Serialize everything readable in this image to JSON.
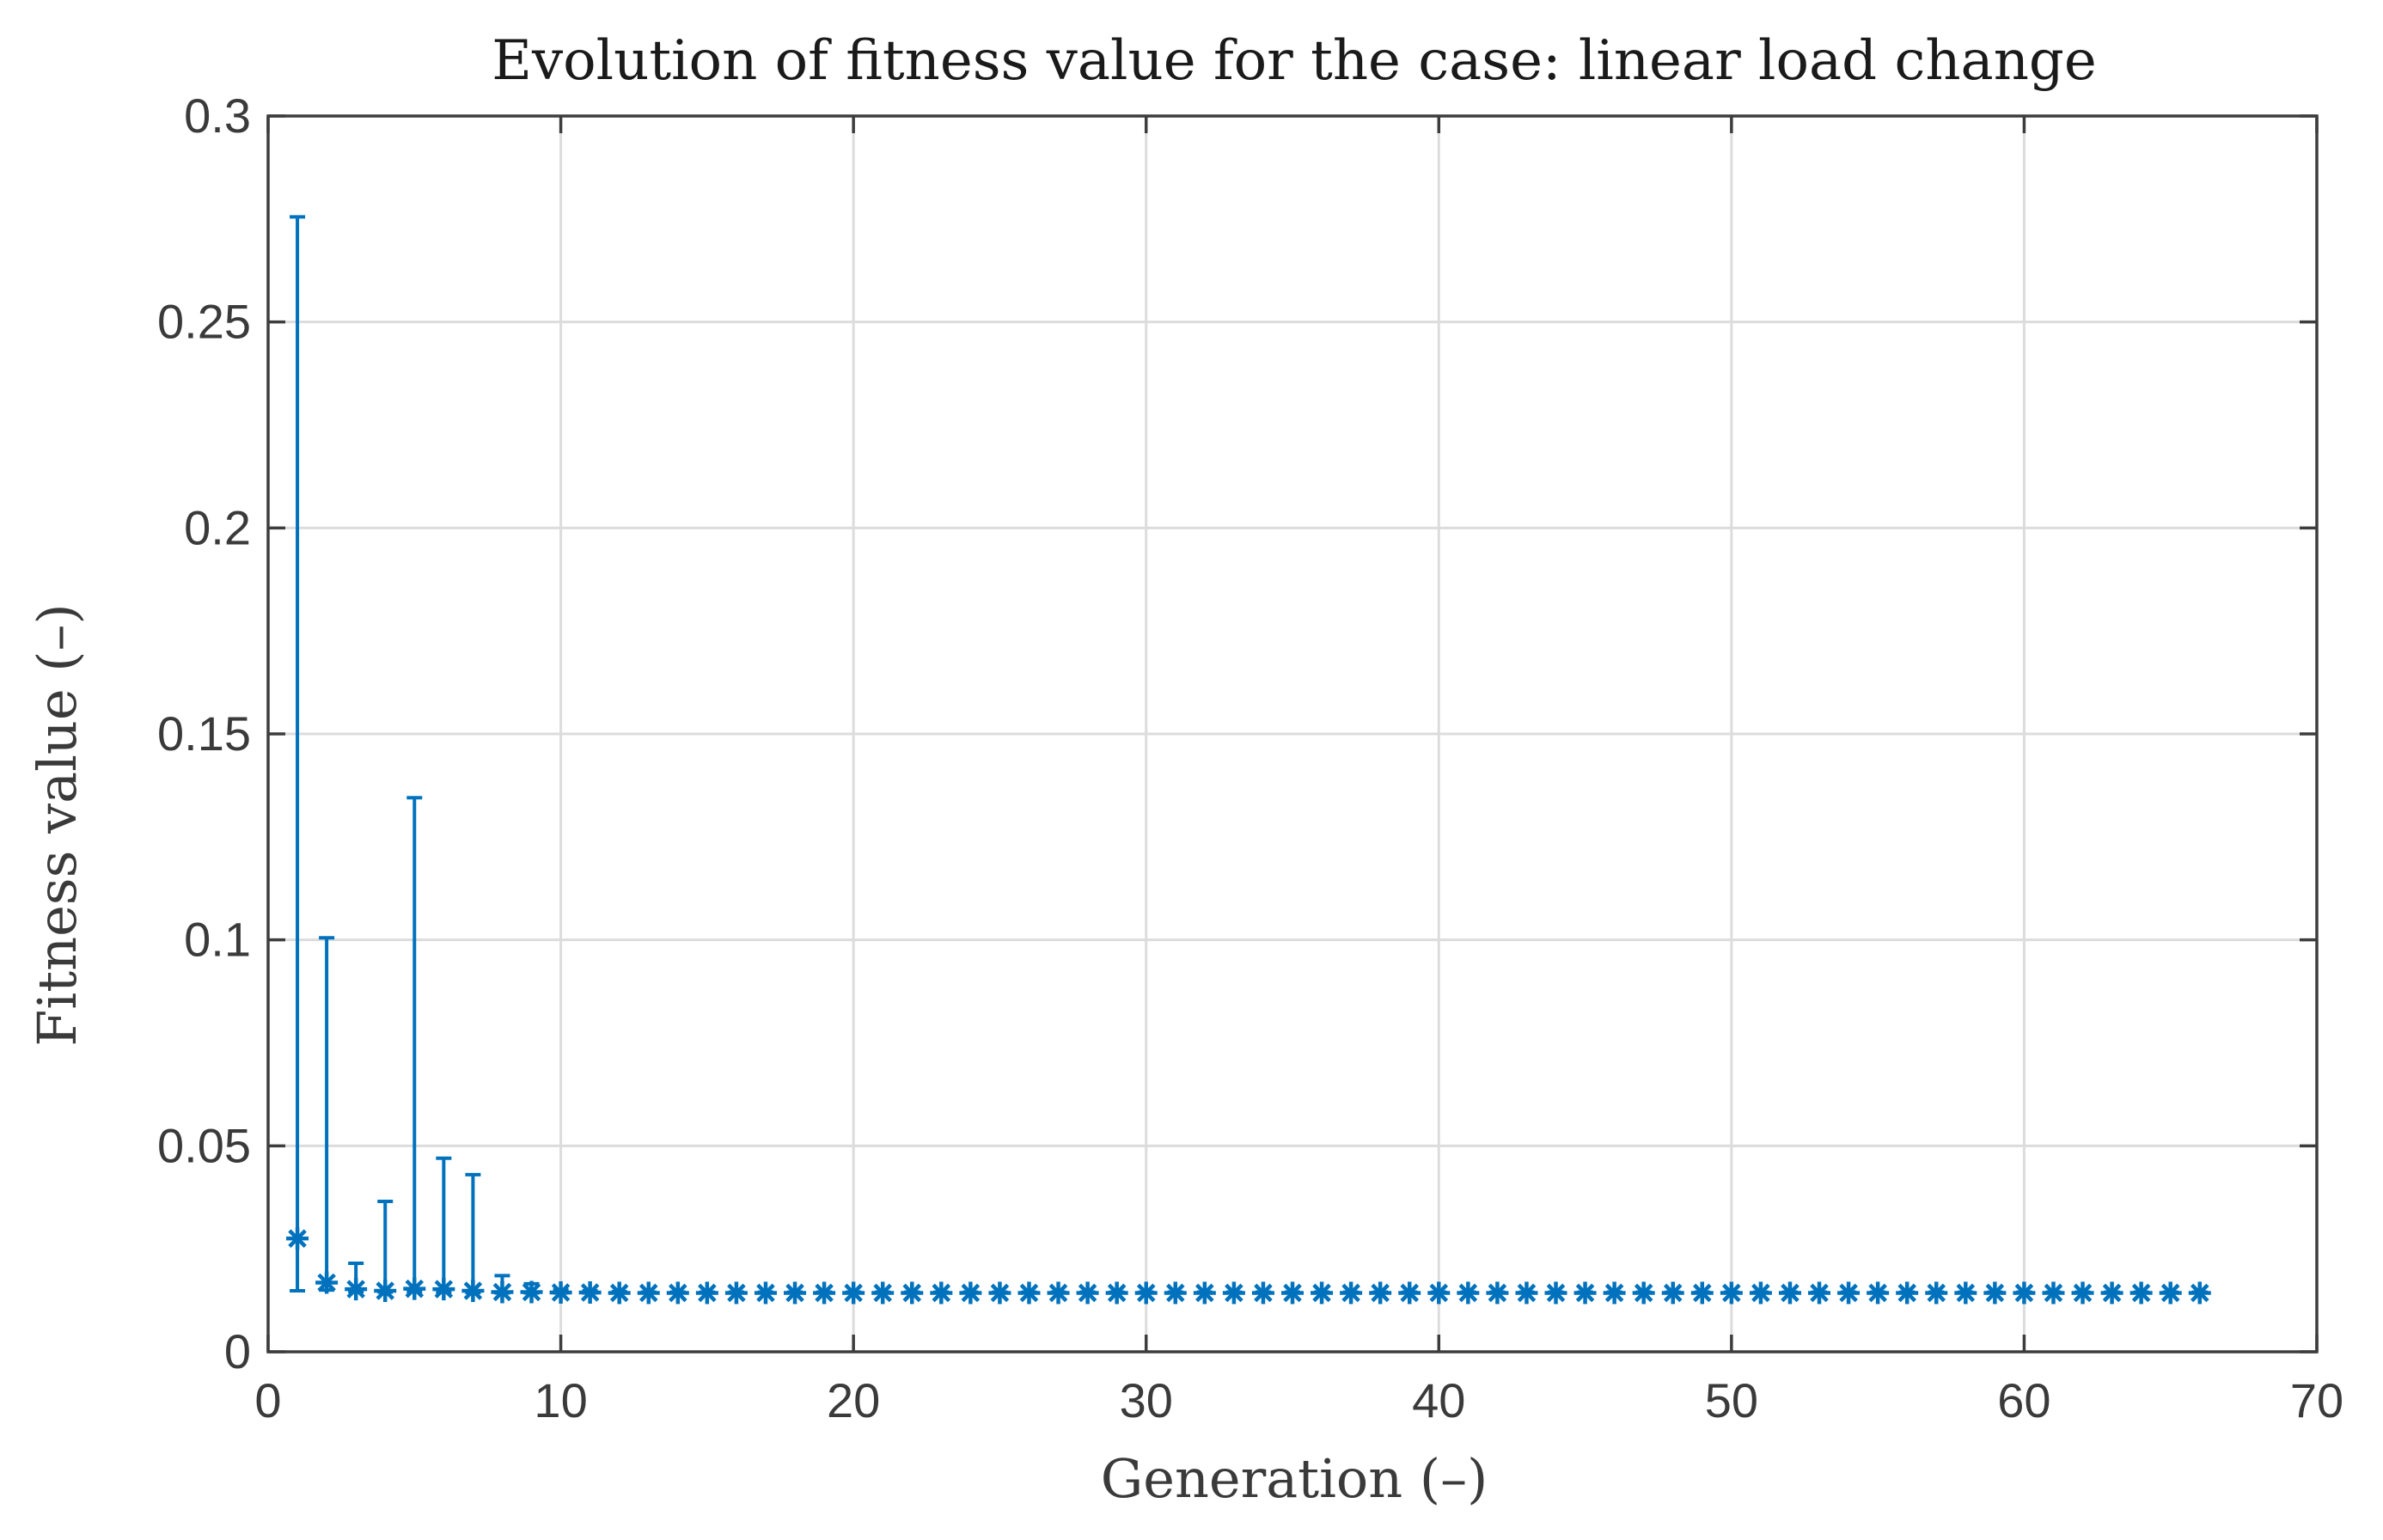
{
  "chart_data": {
    "type": "scatter",
    "subtype": "errorbar",
    "title": "Evolution of fitness value for the case: linear load change",
    "xlabel": "Generation (–)",
    "ylabel": "Fitness value (–)",
    "xlim": [
      0,
      70
    ],
    "ylim": [
      0,
      0.3
    ],
    "grid": true,
    "colors": {
      "series": "#0072bd",
      "axes": "#3d3d3d",
      "grid": "#dcdcdc"
    },
    "x_ticks": [
      "0",
      "10",
      "20",
      "30",
      "40",
      "50",
      "60",
      "70"
    ],
    "y_ticks": [
      "0",
      "0.05",
      "0.1",
      "0.15",
      "0.2",
      "0.25",
      "0.3"
    ],
    "marker": "asterisk",
    "series": [
      {
        "name": "fitness",
        "x": [
          1,
          2,
          3,
          4,
          5,
          6,
          7,
          8,
          9,
          10,
          11,
          12,
          13,
          14,
          15,
          16,
          17,
          18,
          19,
          20,
          21,
          22,
          23,
          24,
          25,
          26,
          27,
          28,
          29,
          30,
          31,
          32,
          33,
          34,
          35,
          36,
          37,
          38,
          39,
          40,
          41,
          42,
          43,
          44,
          45,
          46,
          47,
          48,
          49,
          50,
          51,
          52,
          53,
          54,
          55,
          56,
          57,
          58,
          59,
          60,
          61,
          62,
          63,
          64,
          65,
          66
        ],
        "y": [
          0.0275,
          0.0168,
          0.0152,
          0.0148,
          0.0153,
          0.0152,
          0.0148,
          0.0145,
          0.0145,
          0.0144,
          0.0144,
          0.0143,
          0.0143,
          0.0143,
          0.0143,
          0.0143,
          0.0143,
          0.0143,
          0.0143,
          0.0143,
          0.0143,
          0.0143,
          0.0143,
          0.0143,
          0.0143,
          0.0143,
          0.0143,
          0.0143,
          0.0143,
          0.0143,
          0.0143,
          0.0143,
          0.0143,
          0.0143,
          0.0143,
          0.0143,
          0.0143,
          0.0143,
          0.0143,
          0.0143,
          0.0143,
          0.0143,
          0.0143,
          0.0143,
          0.0143,
          0.0143,
          0.0143,
          0.0143,
          0.0143,
          0.0143,
          0.0143,
          0.0143,
          0.0143,
          0.0143,
          0.0143,
          0.0143,
          0.0143,
          0.0143,
          0.0143,
          0.0143,
          0.0143,
          0.0143,
          0.0143,
          0.0143,
          0.0143,
          0.0143
        ],
        "lower": [
          0.0148,
          0.015,
          0.0146,
          0.0145,
          0.0146,
          0.0145,
          0.0144,
          0.0143,
          0.0143,
          0.0143,
          0.0143,
          0.0143,
          0.0143,
          0.0143,
          0.0143,
          0.0143,
          0.0143,
          0.0143,
          0.0143,
          0.0143,
          0.0143,
          0.0143,
          0.0143,
          0.0143,
          0.0143,
          0.0143,
          0.0143,
          0.0143,
          0.0143,
          0.0143,
          0.0143,
          0.0143,
          0.0143,
          0.0143,
          0.0143,
          0.0143,
          0.0143,
          0.0143,
          0.0143,
          0.0143,
          0.0143,
          0.0143,
          0.0143,
          0.0143,
          0.0143,
          0.0143,
          0.0143,
          0.0143,
          0.0143,
          0.0143,
          0.0143,
          0.0143,
          0.0143,
          0.0143,
          0.0143,
          0.0143,
          0.0143,
          0.0143,
          0.0143,
          0.0143,
          0.0143,
          0.0143,
          0.0143,
          0.0143,
          0.0143,
          0.0143
        ],
        "upper": [
          0.2755,
          0.1005,
          0.0215,
          0.0365,
          0.1345,
          0.047,
          0.043,
          0.0185,
          0.0165,
          0.015,
          0.0148,
          0.0146,
          0.0145,
          0.0145,
          0.0145,
          0.0145,
          0.0145,
          0.0145,
          0.0145,
          0.0145,
          0.0145,
          0.0145,
          0.0145,
          0.0145,
          0.0145,
          0.0145,
          0.0145,
          0.0145,
          0.0145,
          0.0145,
          0.0145,
          0.0145,
          0.0145,
          0.0145,
          0.0145,
          0.0145,
          0.0145,
          0.0145,
          0.0145,
          0.0145,
          0.0145,
          0.0145,
          0.0145,
          0.0145,
          0.0145,
          0.0145,
          0.0145,
          0.0145,
          0.0145,
          0.0145,
          0.0145,
          0.0145,
          0.0145,
          0.0145,
          0.0145,
          0.0145,
          0.0145,
          0.0145,
          0.0145,
          0.0145,
          0.0145,
          0.0145,
          0.0145,
          0.0145,
          0.0145,
          0.0145
        ]
      }
    ]
  }
}
